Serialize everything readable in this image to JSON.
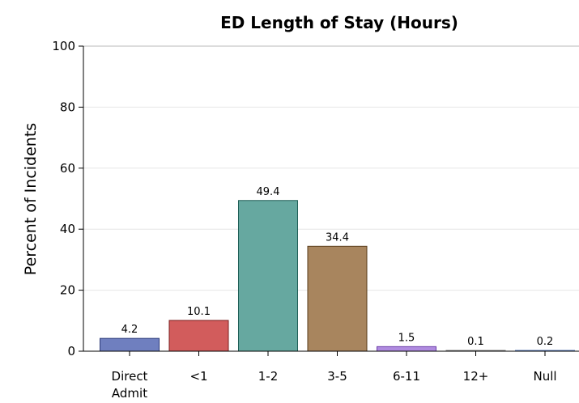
{
  "chart_data": {
    "type": "bar",
    "title": "ED Length of Stay (Hours)",
    "xlabel": "",
    "ylabel": "Percent of Incidents",
    "ylim": [
      0,
      100
    ],
    "yticks": [
      0,
      20,
      40,
      60,
      80,
      100
    ],
    "grid": true,
    "categories": [
      {
        "lines": [
          "Direct",
          "Admit"
        ]
      },
      {
        "lines": [
          "<1"
        ]
      },
      {
        "lines": [
          "1-2"
        ]
      },
      {
        "lines": [
          "3-5"
        ]
      },
      {
        "lines": [
          "6-11"
        ]
      },
      {
        "lines": [
          "12+"
        ]
      },
      {
        "lines": [
          "Null"
        ]
      }
    ],
    "values": [
      4.2,
      10.1,
      49.4,
      34.4,
      1.5,
      0.1,
      0.2
    ],
    "value_labels": [
      "4.2",
      "10.1",
      "49.4",
      "34.4",
      "1.5",
      "0.1",
      "0.2"
    ],
    "colors": {
      "fills": [
        "#6f7fbf",
        "#d25c5c",
        "#66a8a0",
        "#a8855e",
        "#b08be0",
        "#c8c8c8",
        "#a8c0e8"
      ],
      "strokes": [
        "#2d3a78",
        "#7a1f1f",
        "#1f5e56",
        "#5a3e1c",
        "#6b3fa8",
        "#808080",
        "#5a7ab8"
      ]
    }
  }
}
